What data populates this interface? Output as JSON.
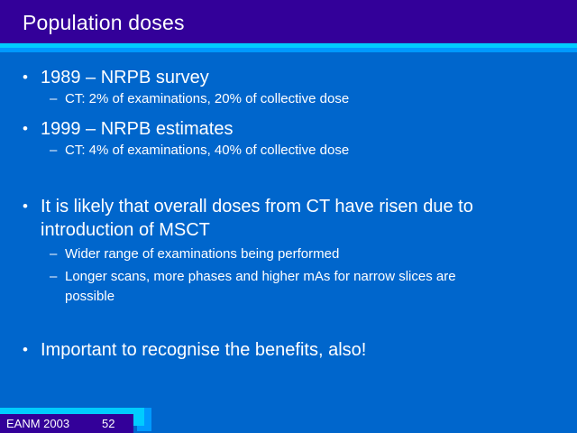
{
  "slide": {
    "title": "Population doses",
    "markers": {
      "level1": "•",
      "level2": "–"
    },
    "bullets": [
      {
        "level": 1,
        "text": "1989 – NRPB survey"
      },
      {
        "level": 2,
        "text": "CT: 2% of examinations, 20% of collective dose"
      },
      {
        "level": 1,
        "text": "1999 – NRPB estimates"
      },
      {
        "level": 2,
        "text": "CT: 4% of examinations, 40% of collective dose"
      },
      {
        "level": 1,
        "text": "It is likely that overall doses from CT have risen due to\nintroduction of MSCT"
      },
      {
        "level": 2,
        "text": "Wider range of examinations being performed"
      },
      {
        "level": 2,
        "text": "Longer scans, more phases and higher mAs for narrow slices are\npossible"
      },
      {
        "level": 1,
        "text": "Important to recognise the benefits, also!"
      }
    ],
    "footer": {
      "label": "EANM 2003",
      "page_number": "52"
    },
    "colors": {
      "title_bar": "#330099",
      "body_background": "#0066CC",
      "accent_cyan": "#00CCFF",
      "accent_blue": "#0099FF",
      "text": "#FFFFFF"
    }
  }
}
